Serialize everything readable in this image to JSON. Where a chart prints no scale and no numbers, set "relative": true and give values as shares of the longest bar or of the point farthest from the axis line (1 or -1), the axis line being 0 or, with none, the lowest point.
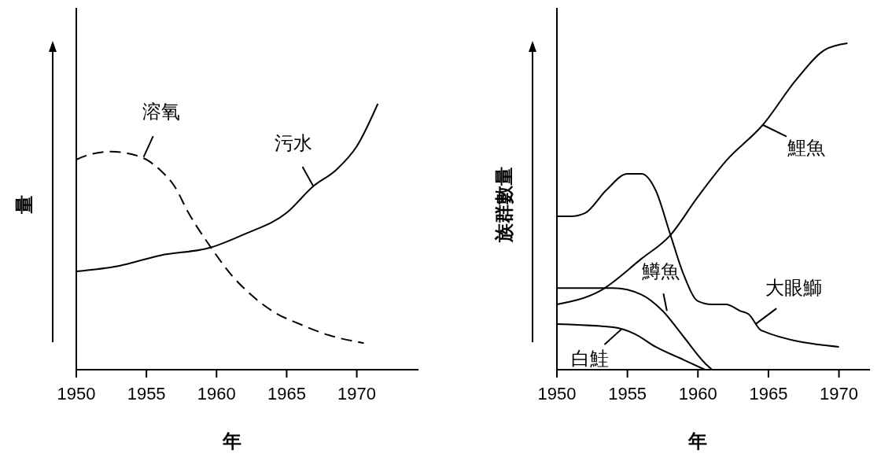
{
  "chart_data": [
    {
      "type": "line",
      "relative": true,
      "xlabel": "年",
      "ylabel": "量",
      "xlim": [
        1950,
        1974.4
      ],
      "xticks": [
        1950,
        1955,
        1960,
        1965,
        1970
      ],
      "grid": false,
      "series": [
        {
          "color": "#000000",
          "line_style": "solid",
          "x": [
            1950,
            1953,
            1956,
            1959.6,
            1962,
            1965,
            1966.9,
            1968.5,
            1970,
            1971.5
          ],
          "values": [
            0.37,
            0.39,
            0.43,
            0.46,
            0.51,
            0.59,
            0.69,
            0.75,
            0.84,
            1
          ]
        },
        {
          "color": "#000000",
          "line_style": "dashed",
          "x": [
            1950,
            1951,
            1952.5,
            1954,
            1955,
            1956,
            1957,
            1958,
            1959.6,
            1961,
            1962.5,
            1964,
            1966,
            1968,
            1970.5
          ],
          "values": [
            0.79,
            0.81,
            0.82,
            0.81,
            0.79,
            0.75,
            0.69,
            0.59,
            0.46,
            0.36,
            0.28,
            0.22,
            0.17,
            0.13,
            0.1
          ]
        }
      ],
      "annotations": [
        {
          "text": "溶氧",
          "x": 1954.8,
          "y": 0.8
        },
        {
          "text": "污水",
          "x": 1966.9,
          "y": 0.69
        }
      ]
    },
    {
      "type": "line",
      "relative": true,
      "xlabel": "年",
      "ylabel": "族群數量",
      "xlim": [
        1950,
        1972.2
      ],
      "xticks": [
        1950,
        1955,
        1960,
        1965,
        1970
      ],
      "grid": false,
      "series": [
        {
          "color": "#000000",
          "line_style": "solid",
          "x": [
            1950,
            1953,
            1956,
            1958,
            1960,
            1962,
            1964.6,
            1967,
            1969,
            1970.6
          ],
          "values": [
            0.2,
            0.24,
            0.34,
            0.41,
            0.53,
            0.64,
            0.75,
            0.89,
            0.98,
            1
          ]
        },
        {
          "color": "#000000",
          "line_style": "solid",
          "x": [
            1950,
            1951,
            1952,
            1953.5,
            1955,
            1956,
            1957,
            1958,
            1959,
            1960,
            1961,
            1962,
            1963,
            1963.6,
            1964.5,
            1970
          ],
          "values": [
            0.47,
            0.47,
            0.48,
            0.55,
            0.6,
            0.6,
            0.55,
            0.42,
            0.29,
            0.21,
            0.2,
            0.2,
            0.18,
            0.17,
            0.12,
            0.07
          ]
        },
        {
          "color": "#000000",
          "line_style": "solid",
          "x": [
            1950,
            1954,
            1956,
            1957.5,
            1959,
            1960.5,
            1961
          ],
          "values": [
            0.25,
            0.25,
            0.23,
            0.18,
            0.1,
            0.02,
            0
          ]
        },
        {
          "color": "#000000",
          "line_style": "solid",
          "x": [
            1950,
            1954,
            1955.5,
            1957,
            1959,
            1960.5
          ],
          "values": [
            0.14,
            0.13,
            0.11,
            0.07,
            0.03,
            0
          ]
        }
      ],
      "annotations": [
        {
          "text": "鯉魚",
          "x": 1964.6,
          "y": 0.75
        },
        {
          "text": "大眼鰤",
          "x": 1964.1,
          "y": 0.14
        },
        {
          "text": "鱒魚",
          "x": 1957.8,
          "y": 0.18
        },
        {
          "text": "白鮭",
          "x": 1954.6,
          "y": 0.125
        }
      ]
    }
  ]
}
